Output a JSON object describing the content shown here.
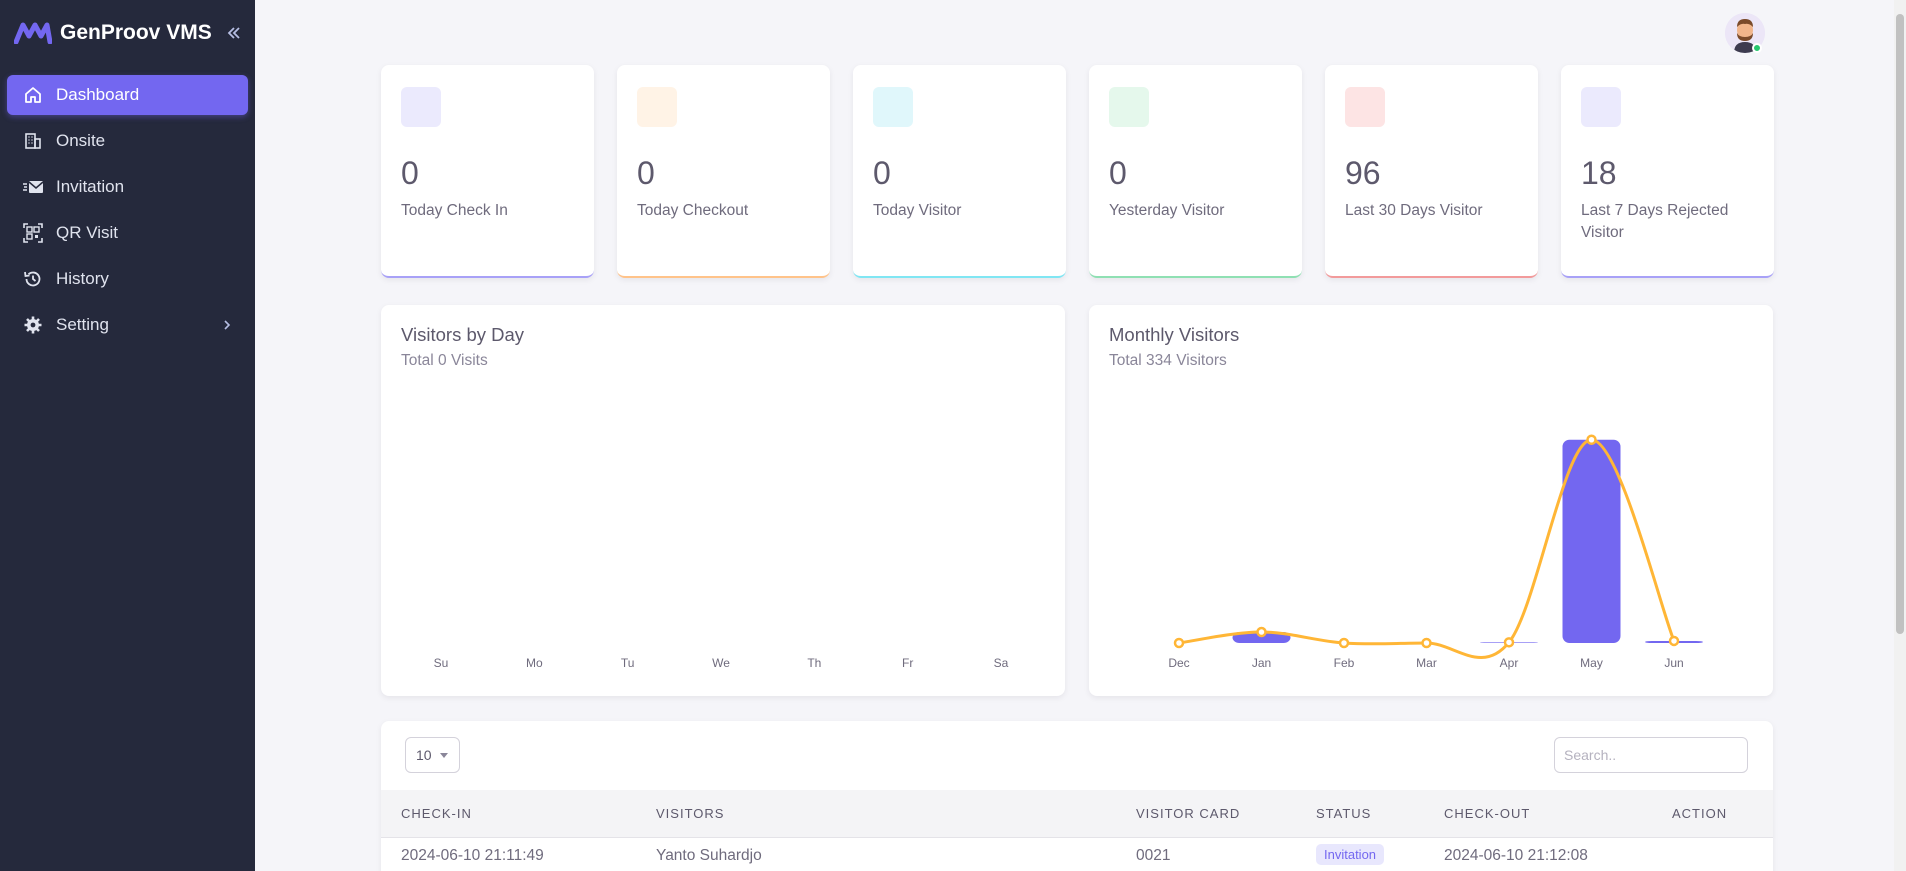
{
  "app": {
    "name": "GenProov VMS"
  },
  "sidebar": {
    "items": [
      {
        "label": "Dashboard",
        "icon": "home-icon",
        "active": true
      },
      {
        "label": "Onsite",
        "icon": "building-icon"
      },
      {
        "label": "Invitation",
        "icon": "mail-icon"
      },
      {
        "label": "QR Visit",
        "icon": "qr-code-icon"
      },
      {
        "label": "History",
        "icon": "history-icon"
      },
      {
        "label": "Setting",
        "icon": "gear-icon",
        "has_submenu": true
      }
    ]
  },
  "stats": [
    {
      "value": "0",
      "label": "Today Check In",
      "color": "#7367f0"
    },
    {
      "value": "0",
      "label": "Today Checkout",
      "color": "#ff9f43"
    },
    {
      "value": "0",
      "label": "Today Visitor",
      "color": "#00cfe8"
    },
    {
      "value": "0",
      "label": "Yesterday Visitor",
      "color": "#28c76f"
    },
    {
      "value": "96",
      "label": "Last 30 Days Visitor",
      "color": "#ea5455"
    },
    {
      "value": "18",
      "label": "Last 7 Days Rejected Visitor",
      "color": "#7367f0"
    }
  ],
  "visitors_by_day": {
    "title": "Visitors by Day",
    "subtitle": "Total 0 Visits"
  },
  "monthly_visitors": {
    "title": "Monthly Visitors",
    "subtitle": "Total 334 Visitors"
  },
  "chart_data": [
    {
      "type": "bar",
      "categories": [
        "Su",
        "Mo",
        "Tu",
        "We",
        "Th",
        "Fr",
        "Sa"
      ],
      "values": [
        0,
        0,
        0,
        0,
        0,
        0,
        0
      ],
      "title": "Visitors by Day",
      "subtitle": "Total 0 Visits"
    },
    {
      "type": "bar",
      "categories": [
        "Dec",
        "Jan",
        "Feb",
        "Mar",
        "Apr",
        "May",
        "Jun"
      ],
      "series": [
        {
          "type": "bar",
          "values": [
            0,
            16,
            0,
            0,
            1,
            296,
            3
          ],
          "color": "#7367f0"
        },
        {
          "type": "line",
          "values": [
            0,
            16,
            0,
            0,
            1,
            296,
            3
          ],
          "color": "#ffb636"
        }
      ],
      "ylim": [
        0,
        300
      ],
      "title": "Monthly Visitors",
      "subtitle": "Total 334 Visitors"
    }
  ],
  "table": {
    "page_size": "10",
    "search_placeholder": "Search..",
    "columns": [
      "CHECK-IN",
      "VISITORS",
      "VISITOR CARD",
      "STATUS",
      "CHECK-OUT",
      "ACTION"
    ],
    "rows": [
      {
        "check_in": "2024-06-10 21:11:49",
        "visitor": "Yanto Suhardjo",
        "card": "0021",
        "status": "Invitation",
        "check_out": "2024-06-10 21:12:08"
      }
    ]
  }
}
